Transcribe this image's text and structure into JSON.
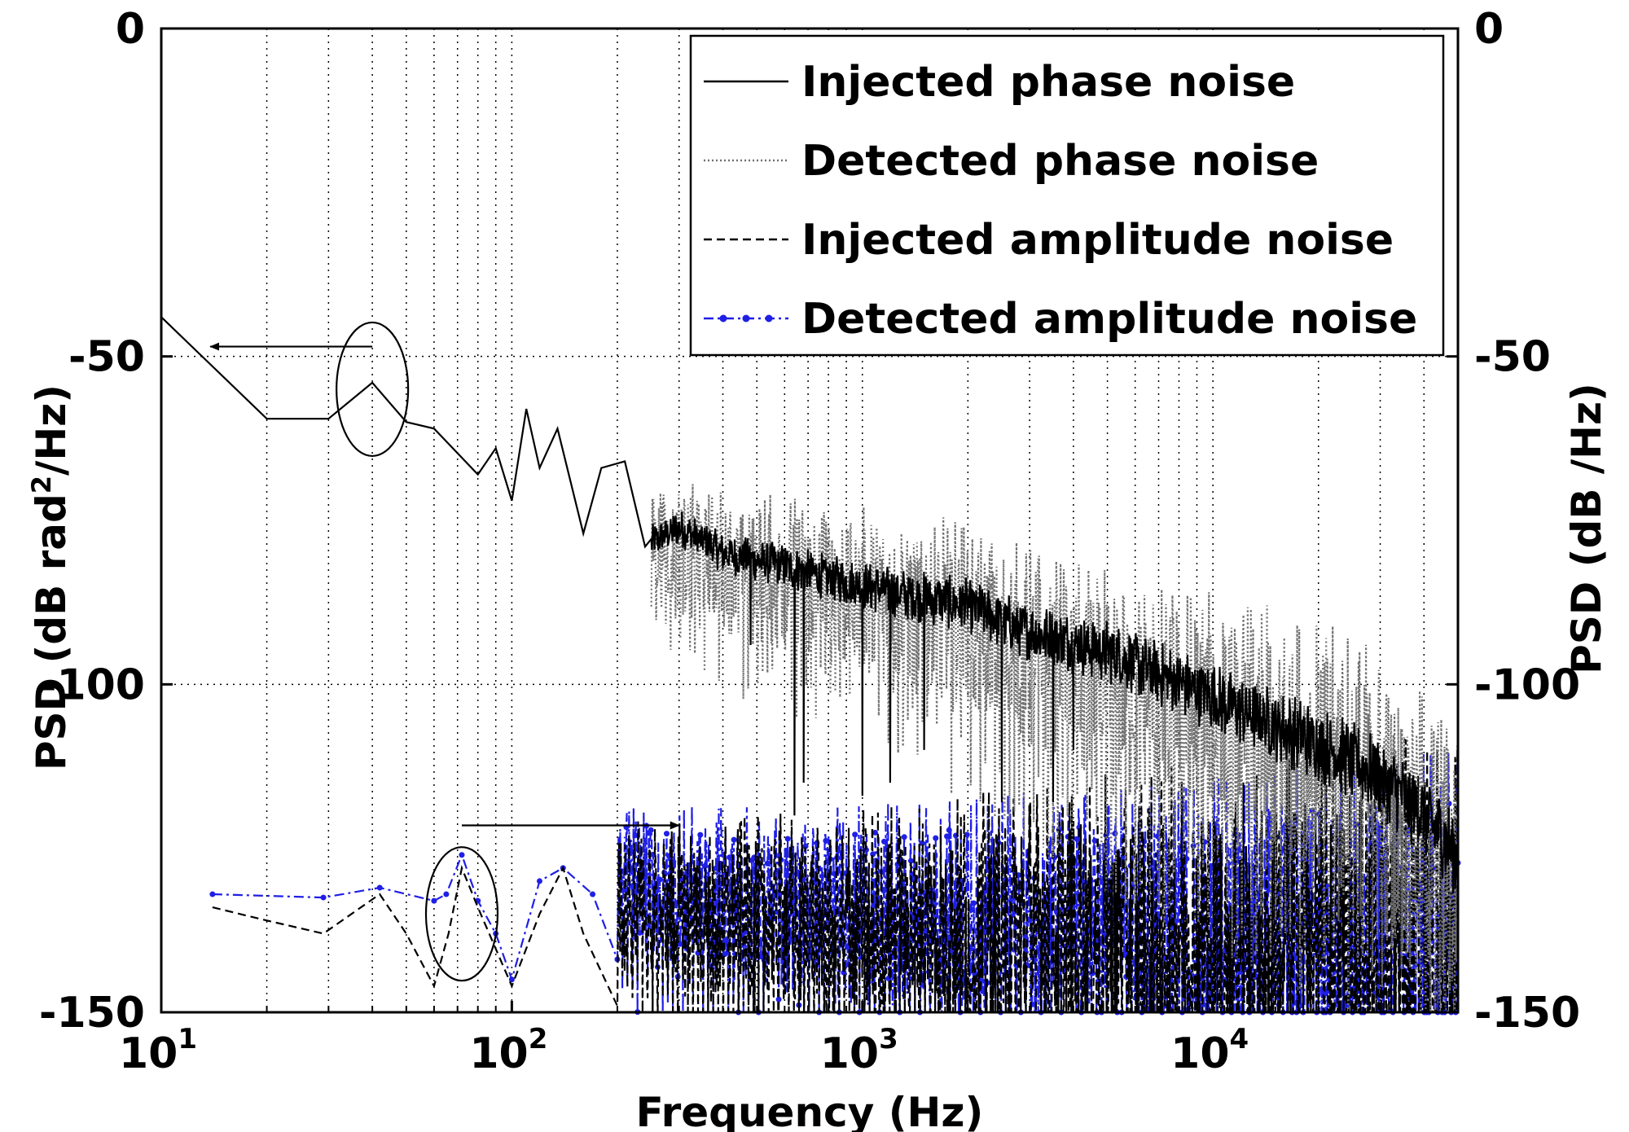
{
  "chart_data": {
    "type": "line",
    "xscale": "log",
    "xlim": [
      10,
      50000
    ],
    "ylim": [
      -150,
      0
    ],
    "ylim_right": [
      -150,
      0
    ],
    "xlabel": "Frequency (Hz)",
    "ylabel_left": {
      "pre": "PSD (dB rad",
      "sup": "2",
      "post": "/Hz)"
    },
    "ylabel_right": "PSD (dB /Hz)",
    "x_ticks": [
      {
        "value": 10,
        "base": "10",
        "exp": "1"
      },
      {
        "value": 100,
        "base": "10",
        "exp": "2"
      },
      {
        "value": 1000,
        "base": "10",
        "exp": "3"
      },
      {
        "value": 10000,
        "base": "10",
        "exp": "4"
      }
    ],
    "y_ticks": [
      {
        "value": 0,
        "label": "0"
      },
      {
        "value": -50,
        "label": "-50"
      },
      {
        "value": -100,
        "label": "-100"
      },
      {
        "value": -150,
        "label": "-150"
      }
    ],
    "grid": true,
    "legend_position": "top-right",
    "colors": {
      "black": "#000000",
      "gray": "#707070",
      "blue": "#1f1fe6"
    },
    "series": [
      {
        "name": "Injected phase noise",
        "style": "solid",
        "color": "#000000",
        "anchors": [
          [
            10,
            -44
          ],
          [
            20,
            -59.5
          ],
          [
            30,
            -59.5
          ],
          [
            40,
            -54
          ],
          [
            50,
            -60
          ],
          [
            60,
            -61
          ],
          [
            80,
            -68
          ],
          [
            90,
            -64
          ],
          [
            100,
            -72
          ],
          [
            110,
            -58
          ],
          [
            120,
            -67
          ],
          [
            135,
            -61
          ],
          [
            160,
            -77
          ],
          [
            180,
            -67
          ],
          [
            210,
            -66
          ],
          [
            240,
            -79
          ],
          [
            300,
            -76
          ],
          [
            400,
            -80
          ],
          [
            600,
            -82
          ],
          [
            1000,
            -85
          ],
          [
            2000,
            -88
          ],
          [
            3000,
            -92
          ],
          [
            5000,
            -95
          ],
          [
            10000,
            -102
          ],
          [
            20000,
            -109
          ],
          [
            30000,
            -114
          ],
          [
            40000,
            -120
          ],
          [
            50000,
            -126
          ]
        ],
        "noise": {
          "start": 250,
          "amp": 2,
          "spikes": [
            [
              480,
              -94
            ],
            [
              640,
              -120
            ],
            [
              680,
              -115
            ],
            [
              1000,
              -117
            ],
            [
              1200,
              -115
            ],
            [
              1500,
              -110
            ],
            [
              2500,
              -118
            ],
            [
              3500,
              -118
            ],
            [
              4000,
              -110
            ]
          ]
        }
      },
      {
        "name": "Detected phase noise",
        "style": "dotted",
        "color": "#707070",
        "anchors": [
          [
            250,
            -78
          ],
          [
            400,
            -81
          ],
          [
            600,
            -83
          ],
          [
            1000,
            -86
          ],
          [
            2000,
            -90
          ],
          [
            3000,
            -95
          ],
          [
            5000,
            -100
          ],
          [
            10000,
            -105
          ],
          [
            20000,
            -111
          ],
          [
            30000,
            -116
          ],
          [
            50000,
            -130
          ]
        ],
        "noise": {
          "start": 250,
          "amp": 7
        }
      },
      {
        "name": "Injected amplitude noise",
        "style": "dashed",
        "color": "#000000",
        "anchors": [
          [
            14,
            -134
          ],
          [
            20,
            -136
          ],
          [
            29,
            -138
          ],
          [
            42,
            -132
          ],
          [
            50,
            -138
          ],
          [
            60,
            -146
          ],
          [
            66,
            -138
          ],
          [
            72,
            -128
          ],
          [
            80,
            -134
          ],
          [
            100,
            -146
          ],
          [
            120,
            -135
          ],
          [
            140,
            -128
          ],
          [
            160,
            -138
          ],
          [
            200,
            -132
          ],
          [
            300,
            -135
          ],
          [
            1000,
            -136
          ],
          [
            10000,
            -137
          ],
          [
            50000,
            -138
          ]
        ],
        "noise": {
          "start": 200,
          "amp": 9
        }
      },
      {
        "name": "Detected amplitude noise",
        "style": "dashdot-marker",
        "color": "#1f1fe6",
        "anchors": [
          [
            14,
            -132
          ],
          [
            29,
            -132.5
          ],
          [
            42,
            -131
          ],
          [
            60,
            -133
          ],
          [
            65,
            -132
          ],
          [
            72,
            -126
          ],
          [
            80,
            -133
          ],
          [
            90,
            -138
          ],
          [
            100,
            -145
          ],
          [
            120,
            -130
          ],
          [
            140,
            -128
          ],
          [
            170,
            -132
          ],
          [
            200,
            -129
          ],
          [
            300,
            -131
          ],
          [
            1000,
            -134
          ],
          [
            5000,
            -136
          ],
          [
            10000,
            -135
          ],
          [
            50000,
            -137
          ]
        ],
        "noise": {
          "start": 200,
          "amp": 8
        }
      }
    ],
    "annotations": [
      {
        "type": "ellipse-arrow",
        "cx": 40,
        "cy": -55,
        "points_to": "left-axis",
        "arrow_from": 40,
        "arrow_to": 13.8,
        "arrow_y": -48.5
      },
      {
        "type": "ellipse-arrow",
        "cx": 72,
        "cy": -135,
        "points_to": "right-axis",
        "arrow_from": 72,
        "arrow_to": 300,
        "arrow_y": -121.5
      }
    ]
  }
}
